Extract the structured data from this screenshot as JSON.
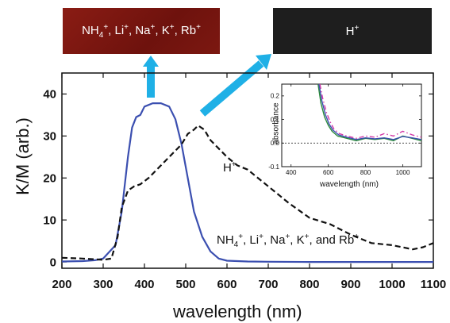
{
  "swatches": {
    "red_label": "NH4+, Li+, Na+, K+, Rb+",
    "black_label": "H+",
    "red_color": "#7a1812",
    "black_color": "#1e1e1e"
  },
  "arrow_color": "#1fb0e6",
  "chart_data": [
    {
      "type": "line",
      "xlabel": "wavelength (nm)",
      "ylabel": "K/M (arb.)",
      "xlim": [
        200,
        1100
      ],
      "ylim": [
        -1.5,
        45
      ],
      "xticks": [
        200,
        300,
        400,
        500,
        600,
        700,
        800,
        900,
        1000,
        1100
      ],
      "yticks": [
        0,
        10,
        20,
        30,
        40
      ],
      "grid": false,
      "series": [
        {
          "name": "NH4+, Li+, Na+, K+, and Rb+",
          "color": "#3b4fb0",
          "style": "solid",
          "x": [
            200,
            250,
            280,
            300,
            330,
            345,
            360,
            370,
            380,
            390,
            400,
            420,
            440,
            460,
            475,
            490,
            505,
            520,
            540,
            560,
            580,
            600,
            650,
            700,
            800,
            900,
            1000,
            1100
          ],
          "y": [
            0.1,
            0.2,
            0.4,
            0.8,
            4,
            12,
            25,
            32,
            34.5,
            35,
            37,
            37.8,
            37.8,
            37,
            34,
            28,
            20,
            12,
            6,
            2.5,
            0.8,
            0.3,
            0.1,
            0.05,
            0,
            0,
            0,
            0
          ]
        },
        {
          "name": "H+",
          "color": "#111111",
          "style": "dashed",
          "x": [
            200,
            250,
            300,
            320,
            335,
            345,
            360,
            375,
            390,
            410,
            430,
            450,
            470,
            490,
            505,
            520,
            530,
            545,
            560,
            580,
            600,
            625,
            650,
            700,
            750,
            800,
            850,
            900,
            950,
            1000,
            1050,
            1075,
            1100
          ],
          "y": [
            1,
            0.8,
            0.5,
            0.8,
            6,
            13,
            17,
            18,
            18.5,
            20,
            22,
            24,
            26,
            28,
            30.5,
            31.5,
            32.5,
            31.5,
            29,
            27,
            25,
            23,
            22,
            18,
            14,
            10.5,
            9,
            6.5,
            4.5,
            4,
            3,
            3.5,
            4.5
          ]
        }
      ],
      "annotations": [
        {
          "text": "H+",
          "x": 820,
          "y": 23
        },
        {
          "text": "NH4+, Li+, Na+, K+, and Rb+",
          "x": 780,
          "y": 3
        }
      ]
    },
    {
      "type": "line",
      "title": "",
      "xlabel": "wavelength (nm)",
      "ylabel": "absorbance",
      "xlim": [
        350,
        1100
      ],
      "ylim": [
        -0.1,
        0.25
      ],
      "xticks": [
        400,
        600,
        800,
        1000
      ],
      "yticks": [
        -0.1,
        0.0,
        0.1,
        0.2
      ],
      "grid": false,
      "reference_line": {
        "y": 0.0,
        "style": "dotted"
      },
      "series": [
        {
          "color": "#2a8a3a",
          "style": "solid",
          "x": [
            545,
            560,
            580,
            600,
            620,
            650,
            700,
            750,
            800,
            850,
            900,
            950,
            1000,
            1050,
            1100
          ],
          "y": [
            0.25,
            0.17,
            0.11,
            0.075,
            0.05,
            0.03,
            0.02,
            0.01,
            0.02,
            0.015,
            0.02,
            0.01,
            0.03,
            0.02,
            0.01
          ]
        },
        {
          "color": "#3b4fb0",
          "style": "solid",
          "x": [
            550,
            565,
            585,
            605,
            625,
            655,
            700,
            750,
            800,
            850,
            900,
            950,
            1000,
            1050,
            1100
          ],
          "y": [
            0.25,
            0.18,
            0.12,
            0.08,
            0.055,
            0.035,
            0.025,
            0.015,
            0.022,
            0.018,
            0.022,
            0.015,
            0.028,
            0.022,
            0.015
          ]
        },
        {
          "color": "#d23aa8",
          "style": "dashdot",
          "x": [
            555,
            570,
            590,
            610,
            630,
            660,
            700,
            750,
            800,
            850,
            900,
            950,
            1000,
            1050,
            1100
          ],
          "y": [
            0.25,
            0.19,
            0.13,
            0.09,
            0.06,
            0.04,
            0.03,
            0.02,
            0.03,
            0.025,
            0.04,
            0.03,
            0.05,
            0.035,
            0.025
          ]
        }
      ]
    }
  ]
}
